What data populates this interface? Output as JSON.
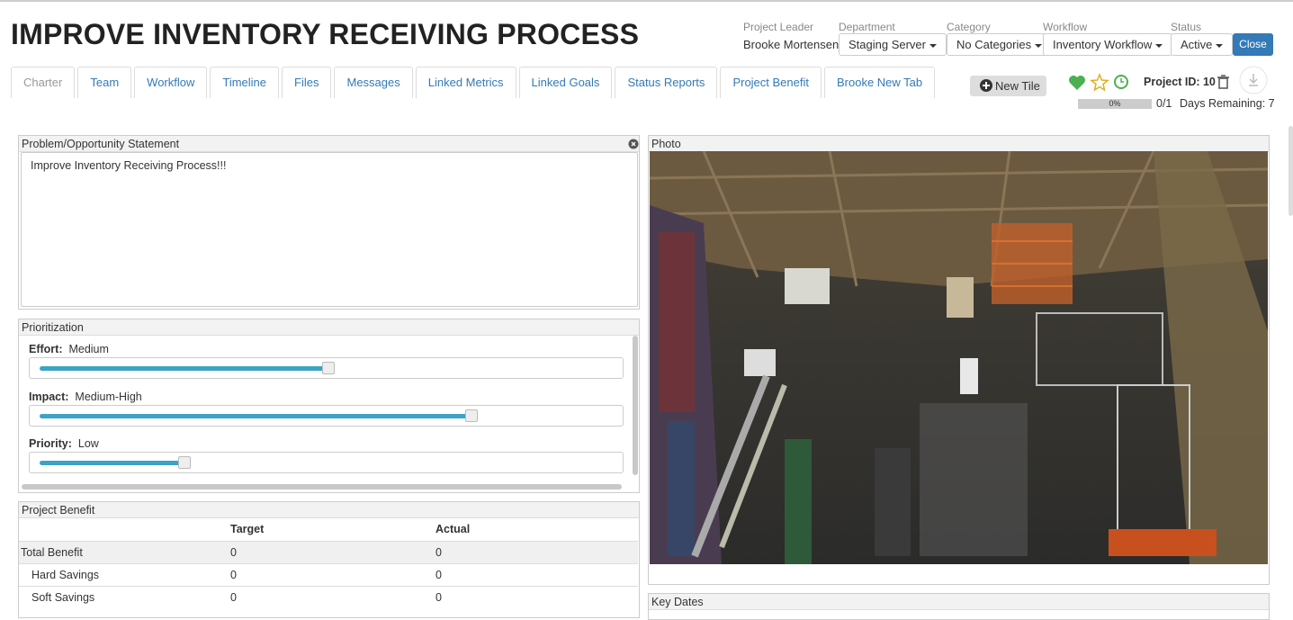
{
  "header": {
    "title": "IMPROVE INVENTORY RECEIVING PROCESS",
    "fields": [
      {
        "label": "Project Leader",
        "value": "Brooke Mortensen"
      },
      {
        "label": "Department",
        "value": "Staging Server"
      },
      {
        "label": "Category",
        "value": "No Categories"
      },
      {
        "label": "Workflow",
        "value": "Inventory Workflow"
      },
      {
        "label": "Status",
        "value": "Active"
      }
    ],
    "close": "Close"
  },
  "tabs": [
    "Charter",
    "Team",
    "Workflow",
    "Timeline",
    "Files",
    "Messages",
    "Linked Metrics",
    "Linked Goals",
    "Status Reports",
    "Project Benefit",
    "Brooke New Tab"
  ],
  "toolbar": {
    "new_tile": "New Tile",
    "project_id": "Project ID: 10",
    "progress": "0%",
    "count": "0/1",
    "days_remaining": "Days Remaining: 7"
  },
  "problem": {
    "title": "Problem/Opportunity Statement",
    "text": "Improve Inventory Receiving Process!!!"
  },
  "prioritization": {
    "title": "Prioritization",
    "items": [
      {
        "label": "Effort:",
        "value": "Medium"
      },
      {
        "label": "Impact:",
        "value": "Medium-High"
      },
      {
        "label": "Priority:",
        "value": "Low"
      }
    ]
  },
  "benefit": {
    "title": "Project Benefit",
    "columns": [
      "Target",
      "Actual"
    ],
    "rows": [
      {
        "label": "Total Benefit",
        "target": 0,
        "actual": 0
      },
      {
        "label": "Hard Savings",
        "target": 0,
        "actual": 0
      },
      {
        "label": "Soft Savings",
        "target": 0,
        "actual": 0
      }
    ]
  },
  "photo": {
    "title": "Photo"
  },
  "key_dates": {
    "title": "Key Dates"
  }
}
